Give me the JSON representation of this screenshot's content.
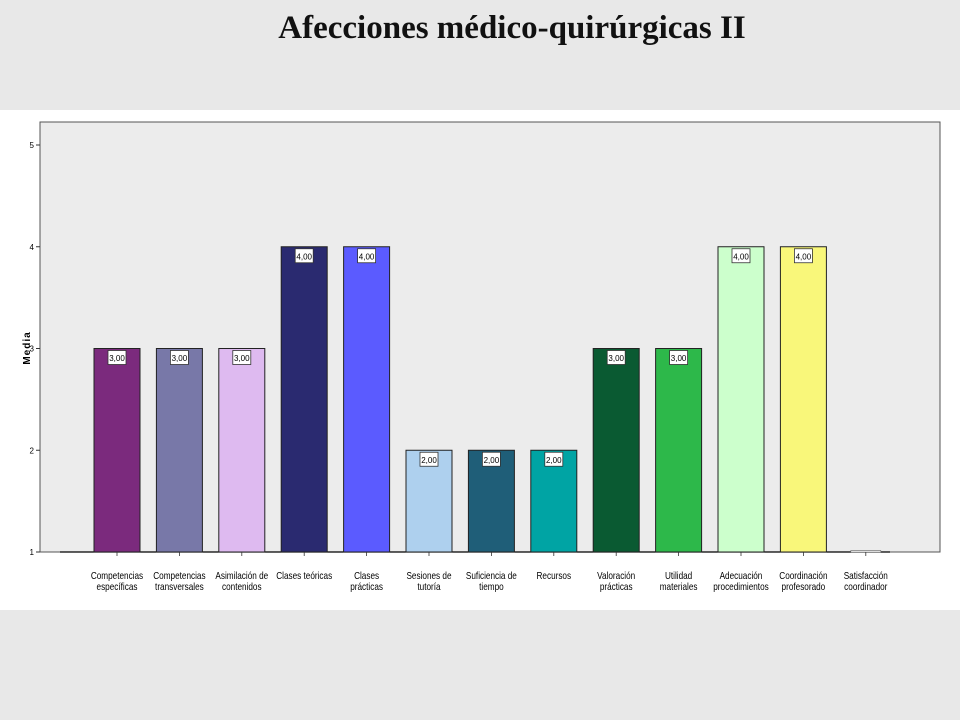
{
  "page_title": "Afecciones médico-quirúrgicas II",
  "chart_data": {
    "type": "bar",
    "title": "Afecciones médico-quirúrgicas II",
    "ylabel": "Media",
    "xlabel": "",
    "ylim": [
      1,
      5
    ],
    "yticks": [
      "1",
      "2",
      "3",
      "4",
      "5"
    ],
    "grid": false,
    "plot_background": "#ececec",
    "categories": [
      [
        "Competencias",
        "específicas"
      ],
      [
        "Competencias",
        "transversales"
      ],
      [
        "Asimilación de",
        "contenidos"
      ],
      [
        "Clases teóricas"
      ],
      [
        "Clases",
        "prácticas"
      ],
      [
        "Sesiones de",
        "tutoría"
      ],
      [
        "Suficiencia de",
        "tiempo"
      ],
      [
        "Recursos"
      ],
      [
        "Valoración",
        "prácticas"
      ],
      [
        "Utilidad",
        "materiales"
      ],
      [
        "Adecuación",
        "procedimientos"
      ],
      [
        "Coordinación",
        "profesorado"
      ],
      [
        "Satisfacción",
        "coordinador"
      ]
    ],
    "values": [
      3,
      3,
      3,
      4,
      4,
      2,
      2,
      2,
      3,
      3,
      4,
      4,
      1
    ],
    "data_labels": [
      "3,00",
      "3,00",
      "3,00",
      "4,00",
      "4,00",
      "2,00",
      "2,00",
      "2,00",
      "3,00",
      "3,00",
      "4,00",
      "4,00",
      ""
    ],
    "colors": [
      "#7b2a7d",
      "#7878a8",
      "#debaf0",
      "#2a2a70",
      "#5b5bff",
      "#aed0ee",
      "#1f5e78",
      "#00a4a4",
      "#0a5a32",
      "#2db84a",
      "#ccffcc",
      "#f9f77a",
      "#dddddd"
    ]
  }
}
